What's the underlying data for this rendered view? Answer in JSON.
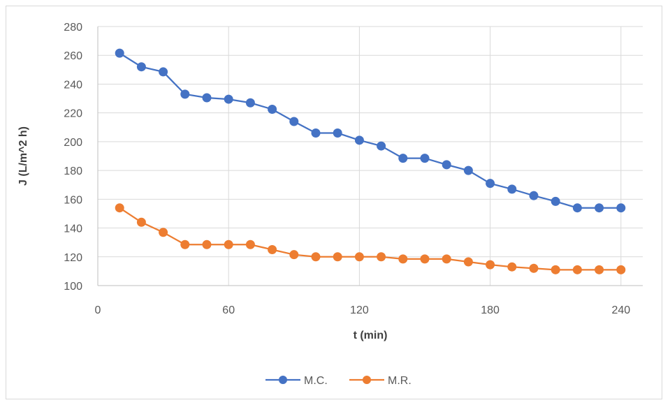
{
  "chart_data": {
    "type": "line",
    "title": "",
    "xlabel": "t (min)",
    "ylabel": "J (L/m^2 h)",
    "xlim": [
      0,
      250
    ],
    "ylim": [
      100,
      280
    ],
    "xticks": [
      0,
      60,
      120,
      180,
      240
    ],
    "yticks": [
      100,
      120,
      140,
      160,
      180,
      200,
      220,
      240,
      260,
      280
    ],
    "grid": true,
    "legend_position": "bottom",
    "x": [
      10,
      20,
      30,
      40,
      50,
      60,
      70,
      80,
      90,
      100,
      110,
      120,
      130,
      140,
      150,
      160,
      170,
      180,
      190,
      200,
      210,
      220,
      230,
      240
    ],
    "series": [
      {
        "name": "M.C.",
        "color": "#4472C4",
        "values": [
          261.5,
          252,
          248.5,
          233,
          230.5,
          229.5,
          227,
          222.5,
          214,
          206,
          206,
          201,
          197,
          188.5,
          188.5,
          184,
          180,
          171,
          167,
          162.5,
          158.5,
          154,
          154,
          154
        ]
      },
      {
        "name": "M.R.",
        "color": "#ED7D31",
        "values": [
          154,
          144,
          137,
          128.5,
          128.5,
          128.5,
          128.5,
          125,
          121.5,
          120,
          120,
          120,
          120,
          118.5,
          118.5,
          118.5,
          116.5,
          114.5,
          113,
          112,
          111,
          111,
          111,
          111
        ]
      }
    ]
  }
}
